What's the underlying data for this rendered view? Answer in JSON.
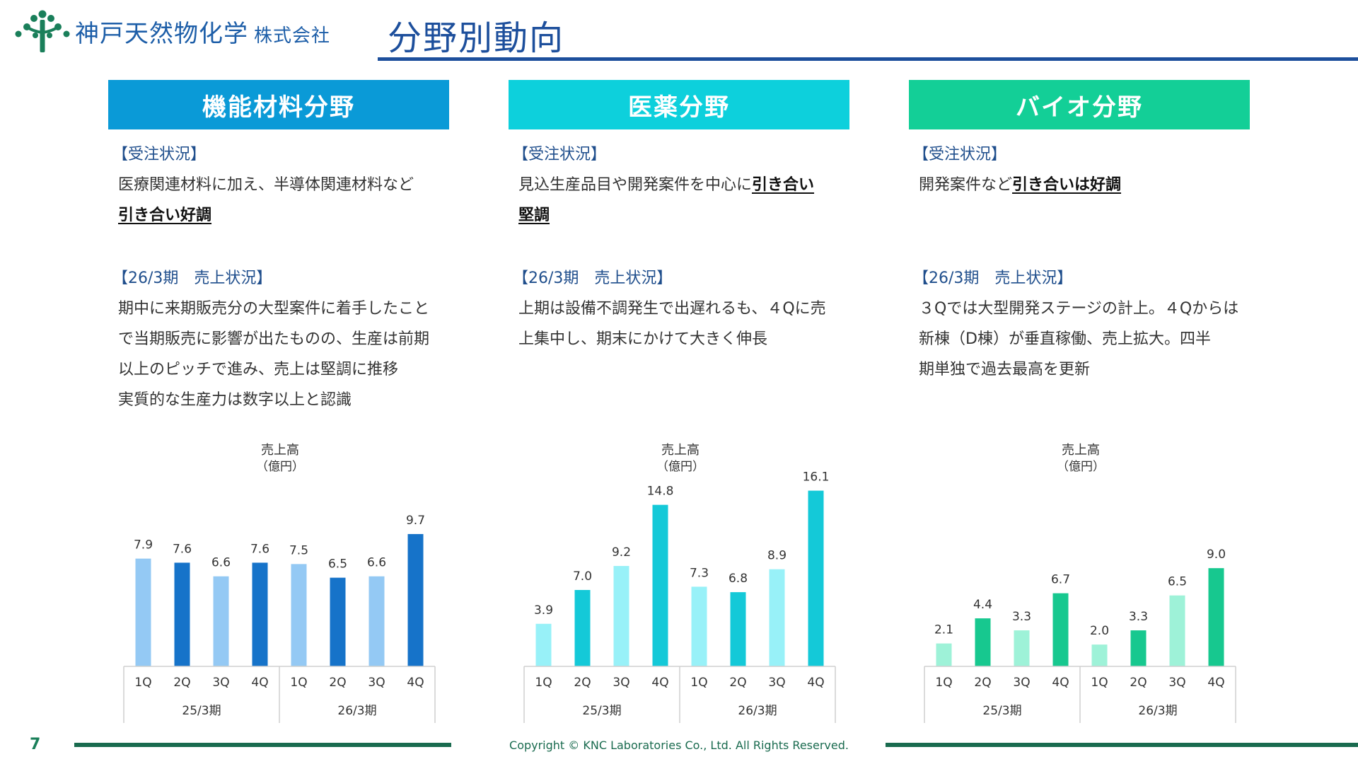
{
  "header": {
    "company_name": "神戸天然物化学",
    "company_suffix": "株式会社",
    "page_title": "分野別動向"
  },
  "columns": [
    {
      "title": "機能材料分野",
      "color": "#0a9ad7",
      "order_label": "【受注状況】",
      "order_lines": [
        "医療関連材料に加え、半導体関連材料など"
      ],
      "order_bold": [
        "引き合い好調"
      ],
      "sales_label": "【26/3期　売上状況】",
      "sales_lines": [
        "期中に来期販売分の大型案件に着手したこと",
        "で当期販売に影響が出たものの、生産は前期",
        "以上のピッチで進み、売上は堅調に推移",
        "実質的な生産力は数字以上と認識"
      ]
    },
    {
      "title": "医薬分野",
      "color": "#0dd0dc",
      "order_label": "【受注状況】",
      "order_lines": [
        "見込生産品目や開発案件を中心に"
      ],
      "order_bold": [
        "引き合い",
        "堅調"
      ],
      "sales_label": "【26/3期　売上状況】",
      "sales_lines": [
        "上期は設備不調発生で出遅れるも、４Qに売",
        "上集中し、期末にかけて大きく伸長"
      ]
    },
    {
      "title": "バイオ分野",
      "color": "#13cf97",
      "order_label": "【受注状況】",
      "order_lines": [
        "開発案件など"
      ],
      "order_bold": [
        "引き合いは好調"
      ],
      "sales_label": "【26/3期　売上状況】",
      "sales_lines": [
        "３Qでは大型開発ステージの計上。４Qからは",
        "新棟（D棟）が垂直稼働、売上拡大。四半",
        "期単独で過去最高を更新"
      ]
    }
  ],
  "chart_data": [
    {
      "type": "bar",
      "title": "売上高",
      "unit": "（億円）",
      "categories": [
        "1Q",
        "2Q",
        "3Q",
        "4Q",
        "1Q",
        "2Q",
        "3Q",
        "4Q"
      ],
      "groups": [
        "25/3期",
        "26/3期"
      ],
      "values": [
        7.9,
        7.6,
        6.6,
        7.6,
        7.5,
        6.5,
        6.6,
        9.7
      ],
      "labels": [
        "7.9",
        "7.6",
        "6.6",
        "7.6",
        "7.5",
        "6.5",
        "6.6",
        "9.7"
      ],
      "colors": [
        "#94c9f4",
        "#1673c9",
        "#94c9f4",
        "#1673c9",
        "#94c9f4",
        "#1673c9",
        "#94c9f4",
        "#1673c9"
      ],
      "ylim": [
        0,
        14
      ]
    },
    {
      "type": "bar",
      "title": "売上高",
      "unit": "（億円）",
      "categories": [
        "1Q",
        "2Q",
        "3Q",
        "4Q",
        "1Q",
        "2Q",
        "3Q",
        "4Q"
      ],
      "groups": [
        "25/3期",
        "26/3期"
      ],
      "values": [
        3.9,
        7.0,
        9.2,
        14.8,
        7.3,
        6.8,
        8.9,
        16.1
      ],
      "labels": [
        "3.9",
        "7.0",
        "9.2",
        "14.8",
        "7.3",
        "6.8",
        "8.9",
        "16.1"
      ],
      "colors": [
        "#98f1f8",
        "#14c9d8",
        "#98f1f8",
        "#14c9d8",
        "#98f1f8",
        "#14c9d8",
        "#98f1f8",
        "#14c9d8"
      ],
      "ylim": [
        0,
        17.5
      ]
    },
    {
      "type": "bar",
      "title": "売上高",
      "unit": "（億円）",
      "categories": [
        "1Q",
        "2Q",
        "3Q",
        "4Q",
        "1Q",
        "2Q",
        "3Q",
        "4Q"
      ],
      "groups": [
        "25/3期",
        "26/3期"
      ],
      "values": [
        2.1,
        4.4,
        3.3,
        6.7,
        2.0,
        3.3,
        6.5,
        9.0
      ],
      "labels": [
        "2.1",
        "4.4",
        "3.3",
        "6.7",
        "2.0",
        "3.3",
        "6.5",
        "9.0"
      ],
      "colors": [
        "#9ef2d8",
        "#17c88f",
        "#9ef2d8",
        "#17c88f",
        "#9ef2d8",
        "#17c88f",
        "#9ef2d8",
        "#17c88f"
      ],
      "ylim": [
        0,
        17.5
      ]
    }
  ],
  "footer": {
    "page_number": "7",
    "copyright": "Copyright © KNC Laboratories Co., Ltd. All Rights Reserved."
  }
}
